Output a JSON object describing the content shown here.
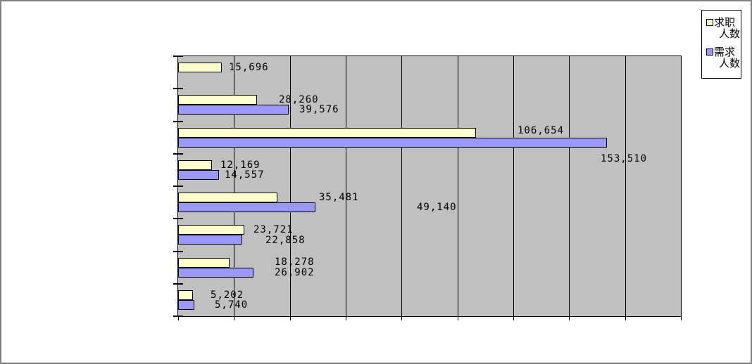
{
  "chart": {
    "background_color": "#FFFFFF",
    "frame_color": "#808080",
    "plot_background_color": "#C0C0C0",
    "gridline_color": "#000000"
  },
  "legend": {
    "items": [
      {
        "line1": "求职",
        "line2": "人数",
        "color": "#FFFFCC"
      },
      {
        "line1": "需求",
        "line2": "人数",
        "color": "#9999FF"
      }
    ]
  },
  "chart_data": {
    "type": "bar",
    "orientation": "horizontal",
    "title": "",
    "xlabel": "",
    "ylabel": "",
    "categories": [
      "",
      "",
      "",
      "",
      "",
      "",
      "",
      ""
    ],
    "series": [
      {
        "name": "求职人数",
        "color": "#FFFFCC",
        "values": [
          15696,
          28260,
          106654,
          12169,
          35481,
          23721,
          18278,
          5202
        ],
        "labels": [
          "15,696",
          "28,260",
          "106,654",
          "12,169",
          "35,481",
          "23,721",
          "18,278",
          "5,202"
        ],
        "label_pos": [
          [
            325,
            96
          ],
          [
            396,
            142
          ],
          [
            735,
            186
          ],
          [
            313,
            235
          ],
          [
            453,
            281
          ],
          [
            360,
            327
          ],
          [
            390,
            373
          ],
          [
            299,
            420
          ]
        ]
      },
      {
        "name": "需求人数",
        "color": "#9999FF",
        "values": [
          null,
          39576,
          153510,
          14557,
          49140,
          22858,
          26902,
          5740
        ],
        "labels": [
          null,
          "39,576",
          "153,510",
          "14,557",
          "49,140",
          "22,858",
          "26,902",
          "5,740"
        ],
        "label_pos": [
          null,
          [
            425,
            156
          ],
          [
            853,
            226
          ],
          [
            319,
            249
          ],
          [
            592,
            295
          ],
          [
            377,
            342
          ],
          [
            390,
            388
          ],
          [
            305,
            434
          ]
        ]
      }
    ],
    "xlim": [
      0,
      180000
    ],
    "gridline_interval": 20000,
    "grid": "vertical",
    "axis_tick_labels_visible": false,
    "legend_position": "top-right"
  }
}
